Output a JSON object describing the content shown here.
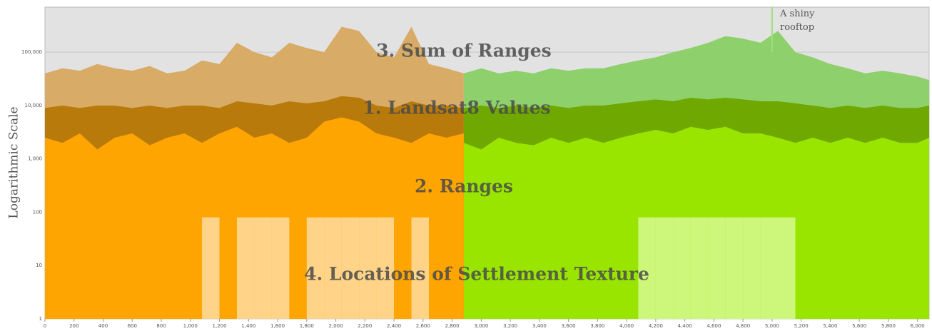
{
  "chart_data": {
    "type": "area",
    "y_label": "Logarithmic Scale",
    "log_y": true,
    "ylim": [
      1,
      700000
    ],
    "yticks": [
      1,
      10,
      100,
      {
        "value": 1000,
        "label": "1,000"
      },
      {
        "value": 10000,
        "label": "10,000"
      },
      {
        "value": 100000,
        "label": "100,000"
      }
    ],
    "xlim": [
      0,
      6080
    ],
    "xticks": [
      0,
      200,
      400,
      600,
      800,
      {
        "value": 1000,
        "label": "1,000"
      },
      {
        "value": 1200,
        "label": "1,200"
      },
      {
        "value": 1400,
        "label": "1,400"
      },
      {
        "value": 1600,
        "label": "1,600"
      },
      {
        "value": 1800,
        "label": "1,800"
      },
      {
        "value": 2000,
        "label": "2,000"
      },
      {
        "value": 2200,
        "label": "2,200"
      },
      {
        "value": 2400,
        "label": "2,400"
      },
      {
        "value": 2600,
        "label": "2,600"
      },
      {
        "value": 2800,
        "label": "2,800"
      },
      {
        "value": 3000,
        "label": "3,000"
      },
      {
        "value": 3200,
        "label": "3,200"
      },
      {
        "value": 3400,
        "label": "3,400"
      },
      {
        "value": 3600,
        "label": "3,600"
      },
      {
        "value": 3800,
        "label": "3,800"
      },
      {
        "value": 4000,
        "label": "4,000"
      },
      {
        "value": 4200,
        "label": "4,200"
      },
      {
        "value": 4400,
        "label": "4,400"
      },
      {
        "value": 4600,
        "label": "4,600"
      },
      {
        "value": 4800,
        "label": "4,800"
      },
      {
        "value": 5000,
        "label": "5,000"
      },
      {
        "value": 5200,
        "label": "5,200"
      },
      {
        "value": 5400,
        "label": "5,400"
      },
      {
        "value": 5600,
        "label": "5,600"
      },
      {
        "value": 5800,
        "label": "5,800"
      },
      {
        "value": 6000,
        "label": "6,000"
      }
    ],
    "grid": true,
    "annotations": [
      "3. Sum of Ranges",
      "1. Landsat8 Values",
      "2. Ranges",
      "4. Locations of Settlement Texture"
    ],
    "marker": {
      "text": "A shiny rooftop",
      "x": 5000,
      "color": "#9be27a"
    },
    "series": [
      {
        "color": "#d8ab66",
        "x": [
          0,
          120,
          240,
          360,
          480,
          600,
          720,
          840,
          960,
          1080,
          1200,
          1320,
          1440,
          1560,
          1680,
          1800,
          1920,
          2040,
          2160,
          2280,
          2400,
          2520,
          2640,
          2760,
          2880
        ],
        "values": [
          40000,
          50000,
          45000,
          60000,
          50000,
          45000,
          55000,
          40000,
          45000,
          70000,
          60000,
          150000,
          100000,
          80000,
          150000,
          120000,
          100000,
          300000,
          250000,
          100000,
          80000,
          300000,
          60000,
          50000,
          40000
        ]
      },
      {
        "color": "#8dd06c",
        "x": [
          2880,
          3000,
          3120,
          3240,
          3360,
          3480,
          3600,
          3720,
          3840,
          3960,
          4080,
          4200,
          4320,
          4440,
          4560,
          4680,
          4800,
          4920,
          5040,
          5160,
          5280,
          5400,
          5520,
          5640,
          5760,
          5880,
          6000,
          6080
        ],
        "values": [
          40000,
          50000,
          40000,
          45000,
          40000,
          50000,
          45000,
          50000,
          50000,
          60000,
          70000,
          80000,
          100000,
          120000,
          150000,
          200000,
          180000,
          150000,
          250000,
          100000,
          80000,
          60000,
          50000,
          40000,
          45000,
          40000,
          35000,
          30000
        ]
      },
      {
        "color": "#b97a0c",
        "x": [
          0,
          120,
          240,
          360,
          480,
          600,
          720,
          840,
          960,
          1080,
          1200,
          1320,
          1440,
          1560,
          1680,
          1800,
          1920,
          2040,
          2160,
          2280,
          2400,
          2520,
          2640,
          2760,
          2880
        ],
        "values": [
          9000,
          10000,
          9000,
          10000,
          10000,
          9000,
          10000,
          9000,
          10000,
          10000,
          9000,
          12000,
          11000,
          10000,
          12000,
          11000,
          12000,
          15000,
          14000,
          10000,
          9000,
          12000,
          10000,
          10000,
          9000
        ]
      },
      {
        "color": "#6fa800",
        "x": [
          2880,
          3000,
          3120,
          3240,
          3360,
          3480,
          3600,
          3720,
          3840,
          3960,
          4080,
          4200,
          4320,
          4440,
          4560,
          4680,
          4800,
          4920,
          5040,
          5160,
          5280,
          5400,
          5520,
          5640,
          5760,
          5880,
          6000,
          6080
        ],
        "values": [
          9000,
          10000,
          9000,
          10000,
          9000,
          10000,
          9000,
          10000,
          10000,
          11000,
          12000,
          13000,
          12000,
          14000,
          13000,
          14000,
          13000,
          12000,
          12000,
          11000,
          10000,
          9000,
          10000,
          9000,
          10000,
          9000,
          9000,
          10000
        ]
      },
      {
        "color": "#ffa502",
        "x": [
          0,
          120,
          240,
          360,
          480,
          600,
          720,
          840,
          960,
          1080,
          1200,
          1320,
          1440,
          1560,
          1680,
          1800,
          1920,
          2040,
          2160,
          2280,
          2400,
          2520,
          2640,
          2760,
          2880
        ],
        "values": [
          2500,
          2000,
          3000,
          1500,
          2500,
          3000,
          1800,
          2500,
          3000,
          2000,
          3000,
          4000,
          2500,
          3000,
          2000,
          2500,
          5000,
          6000,
          5000,
          3000,
          2500,
          2000,
          3000,
          2500,
          3000
        ]
      },
      {
        "color": "#99e500",
        "x": [
          2880,
          3000,
          3120,
          3240,
          3360,
          3480,
          3600,
          3720,
          3840,
          3960,
          4080,
          4200,
          4320,
          4440,
          4560,
          4680,
          4800,
          4920,
          5040,
          5160,
          5280,
          5400,
          5520,
          5640,
          5760,
          5880,
          6000,
          6080
        ],
        "values": [
          2000,
          1500,
          2500,
          2000,
          1800,
          2500,
          2000,
          2500,
          2000,
          2500,
          3000,
          3500,
          3000,
          4000,
          3500,
          4000,
          3000,
          3000,
          2500,
          2000,
          2500,
          2000,
          2500,
          2000,
          2500,
          2000,
          2000,
          2500
        ]
      },
      {
        "color": "#ffd488",
        "step": true,
        "x": [
          0,
          120,
          240,
          360,
          480,
          600,
          720,
          840,
          960,
          1080,
          1200,
          1320,
          1440,
          1560,
          1680,
          1800,
          1920,
          2040,
          2160,
          2280,
          2400,
          2520,
          2640,
          2760,
          2880
        ],
        "values": [
          1,
          1,
          1,
          1,
          1,
          1,
          1,
          1,
          1,
          80,
          1,
          80,
          80,
          80,
          1,
          80,
          80,
          80,
          80,
          80,
          1,
          80,
          1,
          1,
          1
        ]
      },
      {
        "color": "#cdf77a",
        "step": true,
        "x": [
          2880,
          3000,
          3120,
          3240,
          3360,
          3480,
          3600,
          3720,
          3840,
          3960,
          4080,
          4200,
          4320,
          4440,
          4560,
          4680,
          4800,
          4920,
          5040,
          5160,
          5280,
          5400,
          5520,
          5640,
          5760,
          5880,
          6000,
          6080
        ],
        "values": [
          1,
          1,
          1,
          1,
          1,
          1,
          1,
          1,
          1,
          1,
          80,
          80,
          80,
          80,
          80,
          80,
          80,
          80,
          80,
          1,
          1,
          1,
          1,
          1,
          1,
          1,
          1,
          1
        ]
      }
    ]
  }
}
